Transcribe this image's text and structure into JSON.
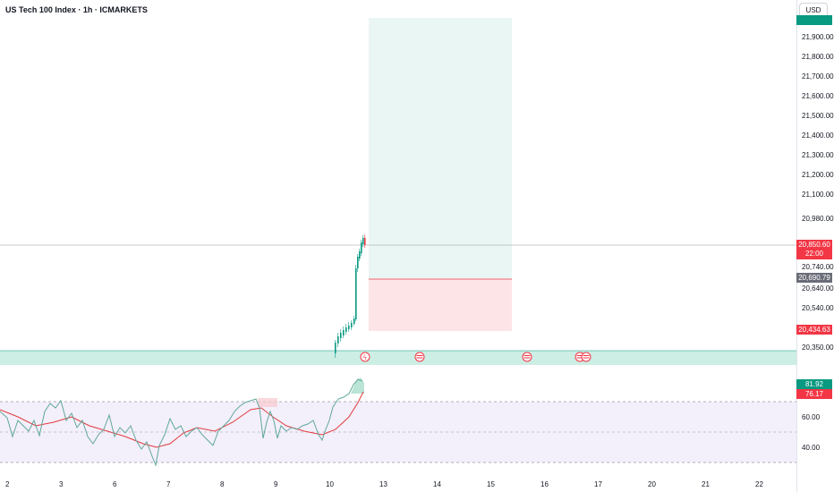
{
  "header": {
    "title": "US Tech 100 Index · 1h · ICMARKETS",
    "currency_button": "USD"
  },
  "price_axis": {
    "labels": [
      "21,900.00",
      "21,800.00",
      "21,700.00",
      "21,600.00",
      "21,500.00",
      "21,400.00",
      "21,300.00",
      "21,200.00",
      "21,100.00",
      "20,980.00",
      "20,740.00",
      "20,640.00",
      "20,540.00",
      "20,350.00"
    ],
    "rsi_labels": [
      "60.00",
      "40.00"
    ]
  },
  "badges": {
    "current_price": "20,850.60",
    "countdown": "22:00",
    "stop_price": "20,690.79",
    "low_price": "20,434.63",
    "rsi_value": "81.92",
    "rsi_ma": "76.17"
  },
  "time_axis": {
    "labels": [
      "2",
      "3",
      "6",
      "7",
      "8",
      "9",
      "10",
      "13",
      "14",
      "15",
      "16",
      "17",
      "20",
      "21",
      "22"
    ]
  },
  "colors": {
    "bull": "#089981",
    "bear": "#f23645",
    "target_zone": "#e9f6f3",
    "stop_zone": "#fde4e6",
    "support_band": "#cdeee4",
    "rsi_bg": "#f3effb",
    "rsi_line": "#5fa89a",
    "rsi_ma": "#e03b3b"
  },
  "icons": {
    "event_icons": [
      "flame-event-icon",
      "us-flag-icon",
      "us-flag-icon",
      "us-flag-icon",
      "us-flag-icon"
    ]
  }
}
